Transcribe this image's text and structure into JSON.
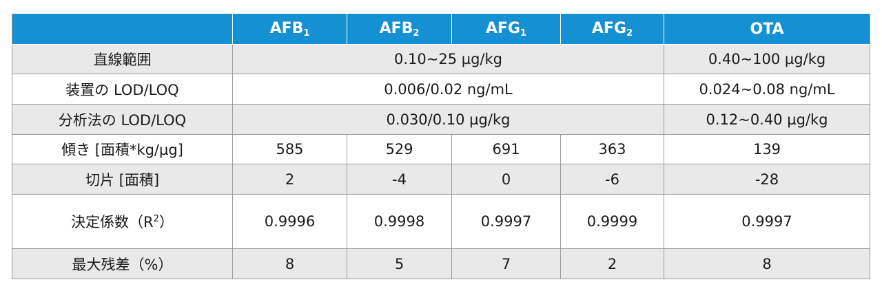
{
  "columns": {
    "c0": "",
    "afb1": {
      "base": "AFB",
      "sub": "1"
    },
    "afb2": {
      "base": "AFB",
      "sub": "2"
    },
    "afg1": {
      "base": "AFG",
      "sub": "1"
    },
    "afg2": {
      "base": "AFG",
      "sub": "2"
    },
    "ota": "OTA"
  },
  "rows": {
    "linear_range": {
      "label": "直線範囲",
      "aflatoxin": "0.10~25 µg/kg",
      "ota": "0.40~100 µg/kg"
    },
    "instrument_lod_loq": {
      "label": "装置の LOD/LOQ",
      "aflatoxin": "0.006/0.02 ng/mL",
      "ota": "0.024~0.08 ng/mL"
    },
    "method_lod_loq": {
      "label": "分析法の LOD/LOQ",
      "aflatoxin": "0.030/0.10 µg/kg",
      "ota": "0.12~0.40 µg/kg"
    },
    "slope": {
      "label": "傾き [面積*kg/µg]",
      "values": [
        "585",
        "529",
        "691",
        "363",
        "139"
      ]
    },
    "intercept": {
      "label": "切片 [面積]",
      "values": [
        "2",
        "-4",
        "0",
        "-6",
        "-28"
      ]
    },
    "r2": {
      "label_pre": "決定係数（R",
      "label_sup": "2",
      "label_post": "）",
      "values": [
        "0.9996",
        "0.9998",
        "0.9997",
        "0.9999",
        "0.9997"
      ]
    },
    "max_residual": {
      "label": "最大残差（%）",
      "values": [
        "8",
        "5",
        "7",
        "2",
        "8"
      ]
    }
  },
  "colors": {
    "header_bg": "#1591d3",
    "shade_bg": "#e9e9e9",
    "border": "#9a9a9a"
  }
}
